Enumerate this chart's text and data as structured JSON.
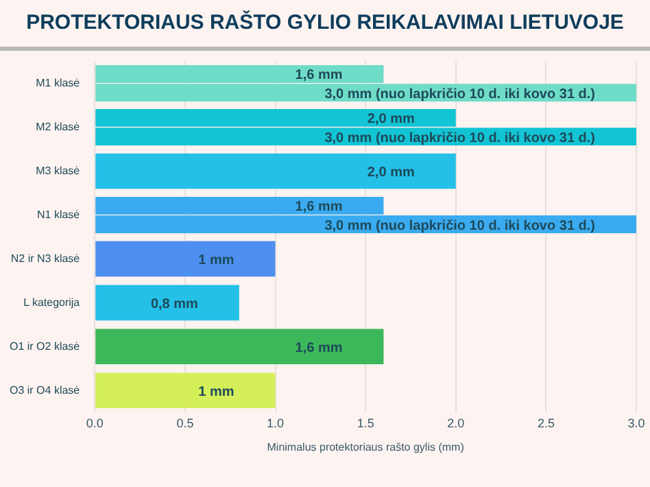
{
  "chart_data": {
    "type": "bar",
    "orientation": "horizontal",
    "title": "PROTEKTORIAUS RAŠTO GYLIO REIKALAVIMAI LIETUVOJE",
    "xlabel": "Minimalus protektoriaus rašto gylis (mm)",
    "categories": [
      "M1 klasė",
      "M2 klasė",
      "M3 klasė",
      "N1 klasė",
      "N2 ir N3 klasė",
      "L kategorija",
      "O1 ir O2 klasė",
      "O3 ir O4 klasė"
    ],
    "series": [
      {
        "values": [
          1.6,
          2.0,
          2.0,
          1.6,
          1,
          0.8,
          1.6,
          1
        ],
        "colors": [
          "#6fdcc8",
          "#13c4d4",
          "#24c0e8",
          "#3aabf0",
          "#4d90f0",
          "#24c0e8",
          "#3cb85a",
          "#d4ef5a"
        ],
        "value_labels": [
          "1,6 mm",
          "2,0 mm",
          "2,0 mm",
          "1,6 mm",
          "1 mm",
          "0,8 mm",
          "1,6 mm",
          "1 mm"
        ]
      },
      {
        "values": [
          3.0,
          3.0,
          null,
          3.0,
          null,
          null,
          null,
          null
        ],
        "colors": [
          "#6fdcc8",
          "#13c4d4",
          "#24c0e8",
          "#3aabf0",
          "#4d90f0",
          "#24c0e8",
          "#3cb85a",
          "#d4ef5a"
        ],
        "value_labels": [
          "3,0 mm (nuo lapkričio 10 d. iki kovo 31 d.)",
          "3,0 mm (nuo lapkričio 10 d. iki kovo 31 d.)",
          null,
          "3,0 mm (nuo lapkričio 10 d. iki kovo 31 d.)",
          null,
          null,
          null,
          null
        ]
      }
    ],
    "xlim": [
      0,
      3
    ],
    "xticks": [
      {
        "value": 0,
        "label": "0.0"
      },
      {
        "value": 0.5,
        "label": "0.5"
      },
      {
        "value": 1,
        "label": "1.0"
      },
      {
        "value": 1.5,
        "label": "1.5"
      },
      {
        "value": 2,
        "label": "2.0"
      },
      {
        "value": 2.5,
        "label": "2.5"
      },
      {
        "value": 3,
        "label": "3.0"
      }
    ],
    "grid": "x",
    "legend": false
  }
}
